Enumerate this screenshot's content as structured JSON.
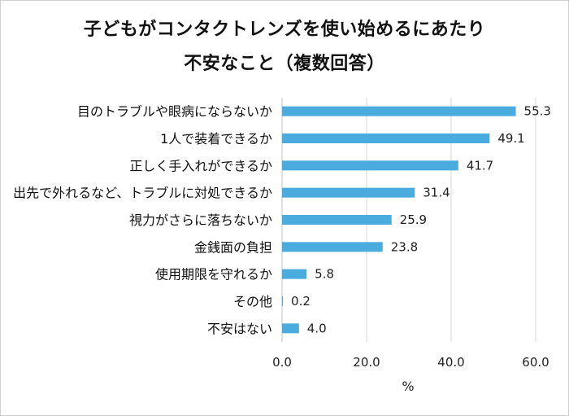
{
  "chart_data": {
    "type": "bar",
    "orientation": "horizontal",
    "title": [
      "子どもがコンタクトレンズを使い始めるにあたり",
      "不安なこと（複数回答）"
    ],
    "categories": [
      "目のトラブルや眼病にならないか",
      "1人で装着できるか",
      "正しく手入れができるか",
      "出先で外れるなど、トラブルに対処できるか",
      "視力がさらに落ちないか",
      "金銭面の負担",
      "使用期限を守れるか",
      "その他",
      "不安はない"
    ],
    "values": [
      55.3,
      49.1,
      41.7,
      31.4,
      25.9,
      23.8,
      5.8,
      0.2,
      4.0
    ],
    "value_labels": [
      "55.3",
      "49.1",
      "41.7",
      "31.4",
      "25.9",
      "23.8",
      "5.8",
      "0.2",
      "4.0"
    ],
    "xlim": [
      0,
      60
    ],
    "xticks": [
      0,
      20,
      40,
      60
    ],
    "xtick_labels": [
      "0.0",
      "20.0",
      "40.0",
      "60.0"
    ],
    "xlabel": "%",
    "ylabel": "",
    "bar_color": "#4aacde",
    "grid": "vertical",
    "grid_color": "#d9d9d9"
  }
}
